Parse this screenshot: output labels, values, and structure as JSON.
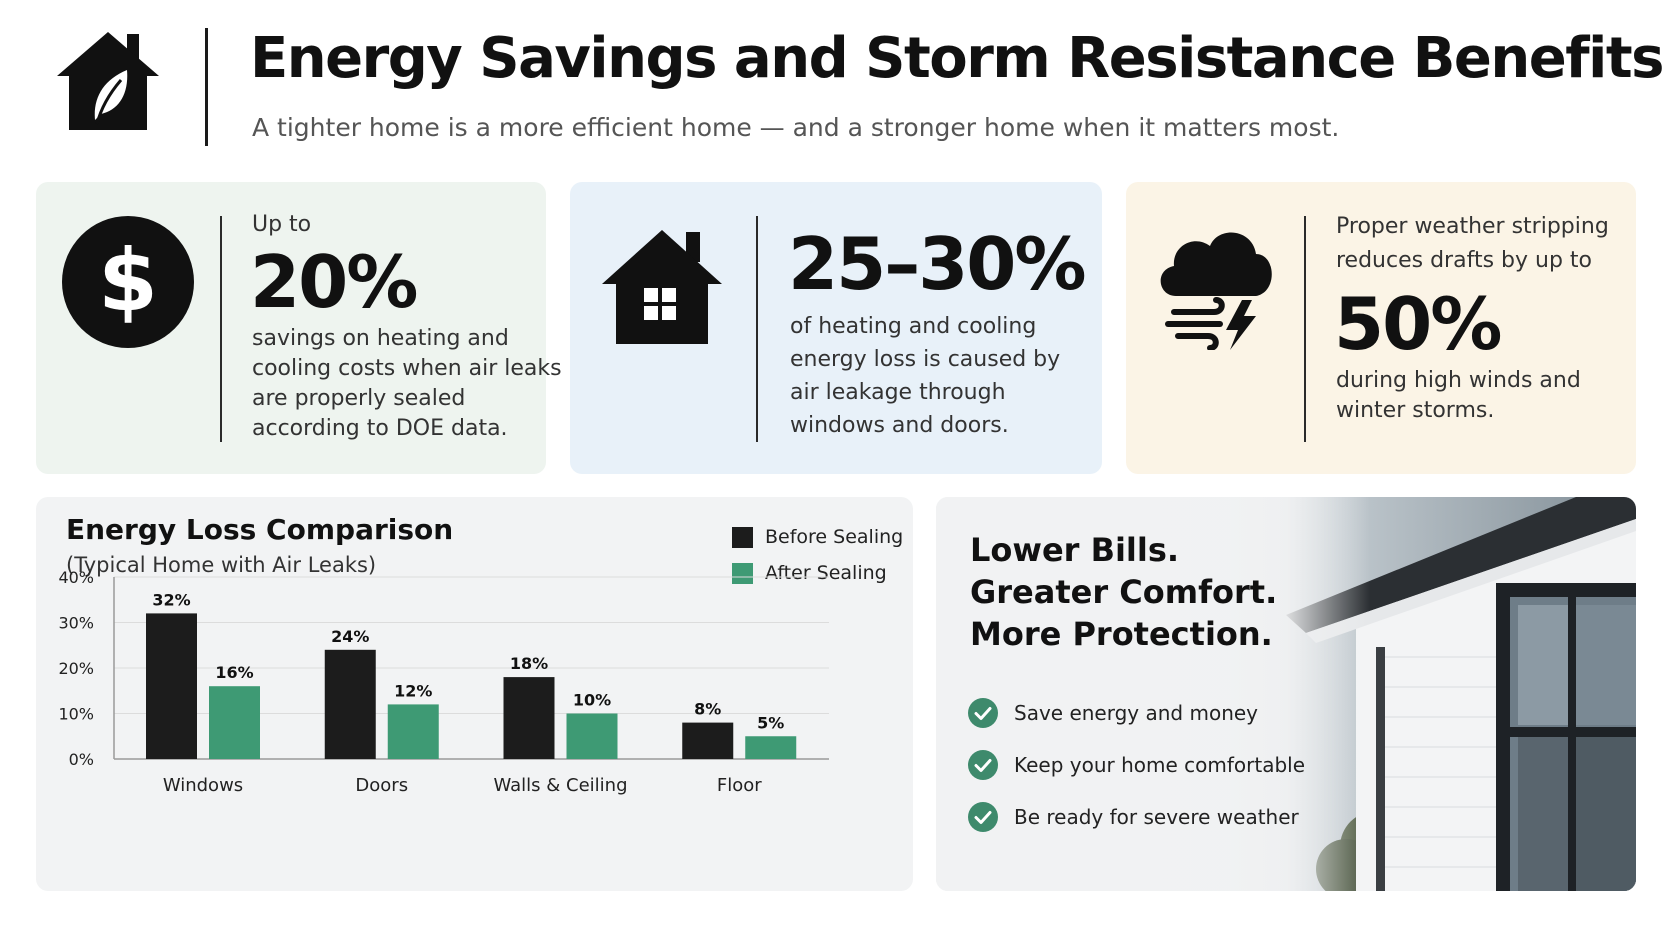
{
  "header": {
    "icon": "home-leaf-icon",
    "title": "Energy Savings and Storm Resistance  Benefits",
    "subtitle": "A tighter home is a more efficient home — and a stronger home when it matters most."
  },
  "stats": [
    {
      "icon": "dollar-icon",
      "prefix": "Up to",
      "value": "20%",
      "lines": [
        "savings on heating and",
        "cooling costs when air leaks",
        "are properly sealed",
        "according to DOE data."
      ]
    },
    {
      "icon": "house-icon",
      "value": "25–30%",
      "lines": [
        "of heating and cooling",
        "energy loss is caused by",
        "air leakage through",
        "windows and doors."
      ]
    },
    {
      "icon": "storm-cloud-icon",
      "prefix_lines": [
        "Proper weather stripping",
        "reduces drafts by up to"
      ],
      "value": "50%",
      "lines": [
        "during high winds and",
        "winter storms."
      ]
    }
  ],
  "chart_data": {
    "type": "bar",
    "title": "Energy Loss Comparison",
    "subtitle": "(Typical Home with Air Leaks)",
    "categories": [
      "Windows",
      "Doors",
      "Walls & Ceiling",
      "Floor"
    ],
    "series": [
      {
        "name": "Before Sealing",
        "values": [
          32,
          24,
          18,
          8
        ],
        "labels": [
          "32%",
          "24%",
          "18%",
          "8%"
        ],
        "color": "#1c1c1c"
      },
      {
        "name": "After Sealing",
        "values": [
          16,
          12,
          10,
          5
        ],
        "labels": [
          "16%",
          "12%",
          "10%",
          "5%"
        ],
        "color": "#3e9a74"
      }
    ],
    "ylim": [
      0,
      40
    ],
    "yticks": [
      "0%",
      "10%",
      "20%",
      "30%",
      "40%"
    ],
    "grid": true,
    "legend": "top-right"
  },
  "promo": {
    "headline": [
      "Lower Bills.",
      "Greater Comfort.",
      "More Protection."
    ],
    "check_color": "#3e8a6c",
    "benefits": [
      "Save energy and money",
      "Keep your home comfortable",
      "Be ready for severe weather"
    ]
  }
}
